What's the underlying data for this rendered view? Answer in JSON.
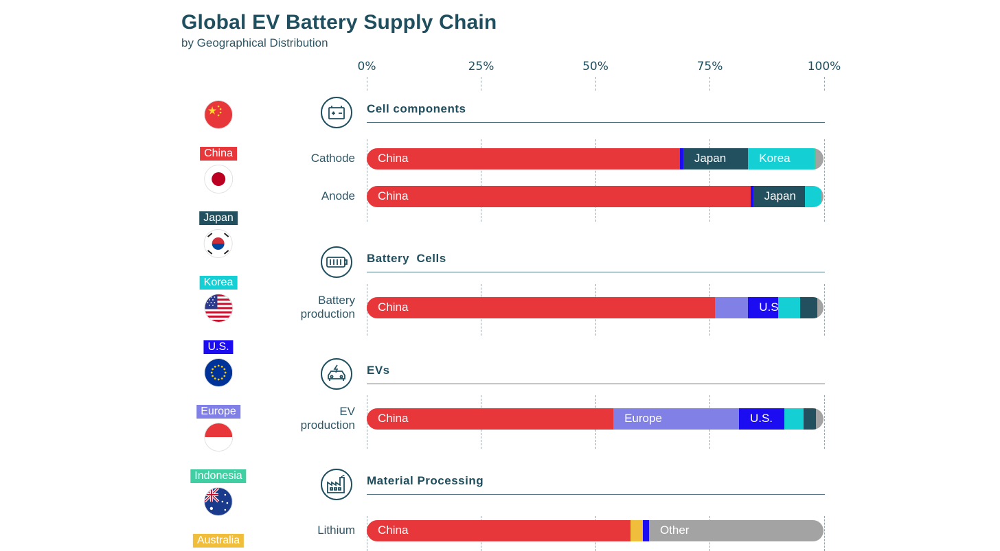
{
  "header": {
    "title": "Global EV Battery Supply Chain",
    "subtitle": "by Geographical Distribution"
  },
  "colors": {
    "China": "#e8373b",
    "Japan": "#23505f",
    "Korea": "#14d0d5",
    "U.S.": "#1c0cf2",
    "Europe": "#8080e6",
    "Indonesia": "#3fcfa3",
    "Australia": "#f0be3a",
    "Other": "#a3a3a3"
  },
  "legend": [
    {
      "name": "China",
      "icon": "china-flag-icon"
    },
    {
      "name": "Japan",
      "icon": "japan-flag-icon"
    },
    {
      "name": "Korea",
      "icon": "korea-flag-icon"
    },
    {
      "name": "U.S.",
      "icon": "us-flag-icon"
    },
    {
      "name": "Europe",
      "icon": "eu-flag-icon"
    },
    {
      "name": "Indonesia",
      "icon": "indonesia-flag-icon"
    },
    {
      "name": "Australia",
      "icon": "australia-flag-icon"
    }
  ],
  "chart_data": {
    "type": "bar",
    "orientation": "horizontal",
    "stacked": true,
    "x_ticks": [
      "0%",
      "25%",
      "50%",
      "75%",
      "100%"
    ],
    "xlim": [
      0,
      100
    ],
    "grid": true,
    "legend_position": "left",
    "sections": [
      {
        "title": "Cell components",
        "icon": "battery-icon",
        "rows": [
          {
            "label": [
              "Cathode"
            ],
            "segments": [
              {
                "name": "China",
                "value": 68.5,
                "label": "China"
              },
              {
                "name": "U.S.",
                "value": 0.8,
                "label": ""
              },
              {
                "name": "Japan",
                "value": 14.2,
                "label": "Japan"
              },
              {
                "name": "Korea",
                "value": 14.5,
                "label": "Korea"
              },
              {
                "name": "Indonesia",
                "value": 0.3,
                "label": ""
              },
              {
                "name": "Other",
                "value": 1.7,
                "label": ""
              }
            ]
          },
          {
            "label": [
              "Anode"
            ],
            "segments": [
              {
                "name": "China",
                "value": 84.0,
                "label": "China"
              },
              {
                "name": "U.S.",
                "value": 0.6,
                "label": ""
              },
              {
                "name": "Japan",
                "value": 11.4,
                "label": "Japan"
              },
              {
                "name": "Korea",
                "value": 3.6,
                "label": ""
              },
              {
                "name": "Other",
                "value": 0.4,
                "label": ""
              }
            ]
          }
        ]
      },
      {
        "title": "Battery  Cells",
        "icon": "battery-cells-icon",
        "rows": [
          {
            "label": [
              "Battery",
              "production"
            ],
            "segments": [
              {
                "name": "China",
                "value": 76.3,
                "label": "China"
              },
              {
                "name": "Europe",
                "value": 7.2,
                "label": ""
              },
              {
                "name": "U.S.",
                "value": 6.6,
                "label": "U.S."
              },
              {
                "name": "Korea",
                "value": 4.8,
                "label": ""
              },
              {
                "name": "Japan",
                "value": 3.7,
                "label": ""
              },
              {
                "name": "Other",
                "value": 1.4,
                "label": ""
              }
            ]
          }
        ]
      },
      {
        "title": "EVs",
        "icon": "ev-car-icon",
        "rows": [
          {
            "label": [
              "EV",
              "production"
            ],
            "segments": [
              {
                "name": "China",
                "value": 54.0,
                "label": "China"
              },
              {
                "name": "Europe",
                "value": 27.5,
                "label": "Europe"
              },
              {
                "name": "U.S.",
                "value": 9.9,
                "label": "U.S."
              },
              {
                "name": "Korea",
                "value": 4.3,
                "label": ""
              },
              {
                "name": "Japan",
                "value": 2.7,
                "label": ""
              },
              {
                "name": "Other",
                "value": 1.6,
                "label": ""
              }
            ]
          }
        ]
      },
      {
        "title": "Material Processing",
        "icon": "factory-icon",
        "rows": [
          {
            "label": [
              "Lithium"
            ],
            "segments": [
              {
                "name": "China",
                "value": 57.7,
                "label": "China"
              },
              {
                "name": "Australia",
                "value": 2.7,
                "label": ""
              },
              {
                "name": "U.S.",
                "value": 1.4,
                "label": ""
              },
              {
                "name": "Other",
                "value": 38.2,
                "label": "Other"
              }
            ]
          }
        ]
      }
    ]
  }
}
